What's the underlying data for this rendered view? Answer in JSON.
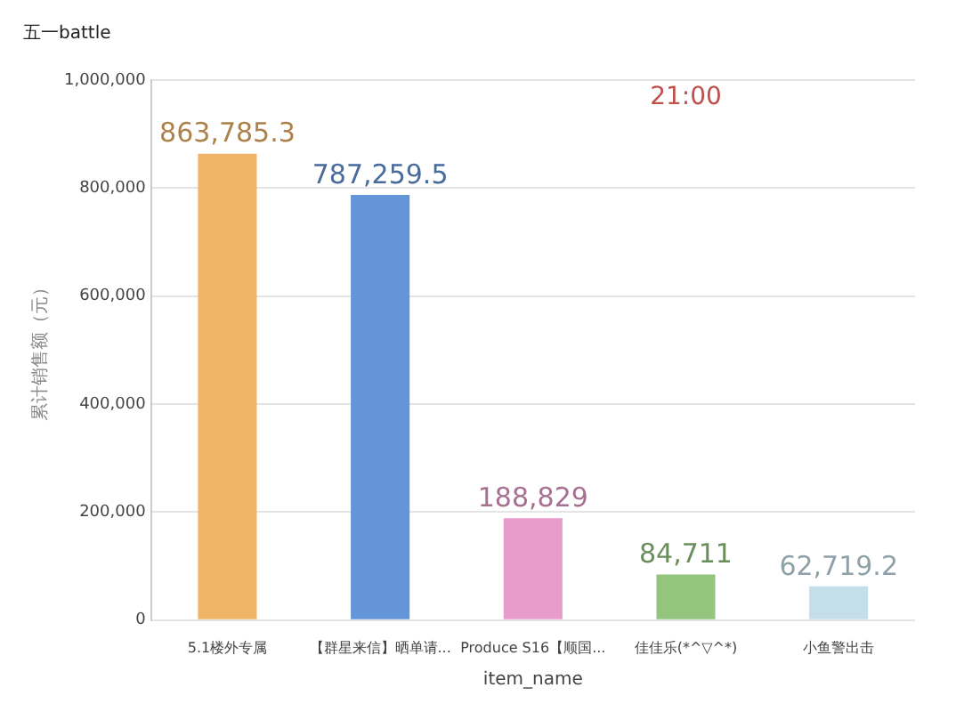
{
  "chart_data": {
    "type": "bar",
    "title": "五一battle",
    "xlabel": "item_name",
    "ylabel": "累计销售额（元）",
    "categories": [
      "5.1楼外专属",
      "【群星来信】晒单请...",
      "Produce S16【顺国...",
      "佳佳乐(*^▽^*)",
      "小鱼警出击"
    ],
    "values": [
      863785.3,
      787259.5,
      188829,
      84711,
      62719.2
    ],
    "value_labels": [
      "863,785.3",
      "787,259.5",
      "188,829",
      "84,711",
      "62,719.2"
    ],
    "colors": [
      "#f0b467",
      "#6495d8",
      "#e89ccb",
      "#93c57f",
      "#c5dfea"
    ],
    "ylim": [
      0,
      1000000
    ],
    "yticks": [
      {
        "value": 0,
        "label": "0"
      },
      {
        "value": 200000,
        "label": "200,000"
      },
      {
        "value": 400000,
        "label": "400,000"
      },
      {
        "value": 600000,
        "label": "600,000"
      },
      {
        "value": 800000,
        "label": "800,000"
      },
      {
        "value": 1000000,
        "label": "1,000,000"
      }
    ],
    "grid": "y",
    "annotations": [
      "21:00"
    ]
  }
}
